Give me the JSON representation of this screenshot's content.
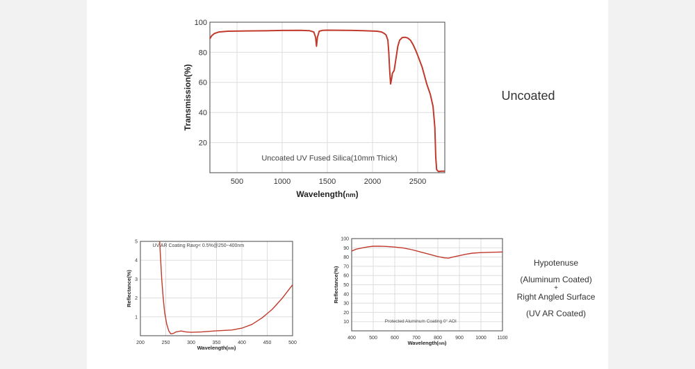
{
  "labels": {
    "uncoated": "Uncoated",
    "hypotenuse": "Hypotenuse",
    "aluminum_coated": "(Aluminum Coated)",
    "plus": "+",
    "right_angled": "Right Angled Surface",
    "uv_ar_coated": "(UV AR Coated)"
  },
  "colors": {
    "line": "#c0392b",
    "frame": "#444444",
    "grid": "#dddddd",
    "panel_bg": "#ffffff",
    "page_bg": "#f2f2f2"
  },
  "chart_data": [
    {
      "type": "line",
      "annotation": "Uncoated UV Fused Silica(10mm Thick)",
      "xlabel": "Wavelength(",
      "xlabel_unit": "nm",
      "xlabel_close": ")",
      "ylabel": "Transmission(%)",
      "xlim": [
        200,
        2800
      ],
      "ylim": [
        0,
        100
      ],
      "xticks": [
        500,
        1000,
        1500,
        2000,
        2500
      ],
      "yticks": [
        20,
        40,
        60,
        80,
        100
      ],
      "grid": true,
      "series": [
        {
          "x": [
            200,
            220,
            250,
            300,
            400,
            600,
            800,
            1000,
            1200,
            1300,
            1350,
            1370,
            1380,
            1390,
            1410,
            1450,
            1500,
            1700,
            1900,
            2050,
            2100,
            2130,
            2150,
            2170,
            2180,
            2190,
            2200,
            2210,
            2220,
            2240,
            2260,
            2280,
            2300,
            2330,
            2360,
            2390,
            2420,
            2450,
            2480,
            2500,
            2550,
            2600,
            2640,
            2670,
            2690,
            2700,
            2710,
            2730,
            2760,
            2800
          ],
          "y": [
            89,
            91,
            92.5,
            93.5,
            94,
            94.2,
            94.3,
            94.5,
            94.6,
            94.4,
            93.5,
            90,
            84,
            90,
            94,
            94.6,
            94.7,
            94.6,
            94.4,
            94,
            93.5,
            92.5,
            91.5,
            88,
            80,
            68,
            59,
            62,
            66,
            68,
            76,
            84,
            88,
            89.8,
            90,
            89.5,
            88,
            85,
            81,
            78,
            70,
            59,
            52,
            44,
            30,
            10,
            2,
            0.8,
            1,
            1
          ]
        }
      ]
    },
    {
      "type": "line",
      "annotation": "UV AR Coating Ravg< 0.5%@250~400nm",
      "xlabel": "Wavelength(",
      "xlabel_unit": "nm",
      "xlabel_close": ")",
      "ylabel": "Reflectance(%)",
      "xlim": [
        200,
        500
      ],
      "ylim": [
        0,
        5
      ],
      "xticks": [
        200,
        250,
        300,
        350,
        400,
        450,
        500
      ],
      "yticks": [
        1,
        2,
        3,
        4,
        5
      ],
      "grid": true,
      "series": [
        {
          "x": [
            238,
            240,
            242,
            245,
            248,
            252,
            256,
            260,
            265,
            270,
            280,
            290,
            300,
            320,
            350,
            380,
            400,
            420,
            440,
            460,
            480,
            500
          ],
          "y": [
            5,
            4.0,
            3.0,
            2.0,
            1.2,
            0.6,
            0.25,
            0.1,
            0.12,
            0.2,
            0.25,
            0.2,
            0.18,
            0.2,
            0.26,
            0.3,
            0.4,
            0.6,
            0.95,
            1.4,
            2.0,
            2.7
          ]
        }
      ]
    },
    {
      "type": "line",
      "annotation": "Protected Aluminum Coating  0° AOI",
      "xlabel": "Wavelength(",
      "xlabel_unit": "nm",
      "xlabel_close": ")",
      "ylabel": "Reflectance(%)",
      "xlim": [
        400,
        1100
      ],
      "ylim": [
        0,
        100
      ],
      "xticks": [
        400,
        500,
        600,
        700,
        800,
        900,
        1000,
        1100
      ],
      "yticks": [
        10,
        20,
        30,
        40,
        50,
        60,
        70,
        80,
        90,
        100
      ],
      "grid": true,
      "series": [
        {
          "x": [
            400,
            420,
            450,
            480,
            500,
            530,
            560,
            600,
            640,
            680,
            720,
            760,
            800,
            830,
            850,
            870,
            900,
            930,
            960,
            1000,
            1050,
            1100
          ],
          "y": [
            86.5,
            88.5,
            90,
            91.2,
            91.7,
            91.8,
            91.5,
            90.8,
            89.8,
            88,
            85.5,
            83,
            80.5,
            79.2,
            78.8,
            80,
            81.5,
            83,
            84.2,
            84.8,
            85.2,
            85.5
          ]
        }
      ]
    }
  ]
}
